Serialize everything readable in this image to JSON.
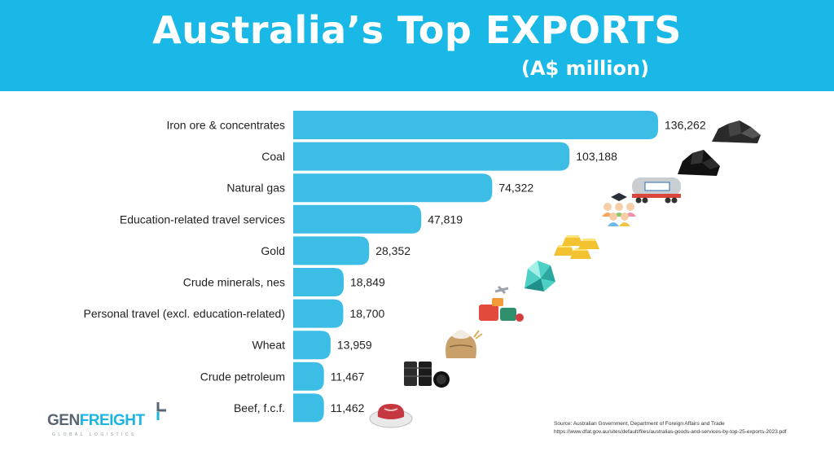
{
  "header": {
    "title": "Australia’s Top EXPORTS",
    "subtitle": "(A$ million)"
  },
  "chart_data": {
    "type": "bar",
    "orientation": "horizontal",
    "title": "Australia’s Top EXPORTS",
    "subtitle": "(A$ million)",
    "categories": [
      "Iron ore & concentrates",
      "Coal",
      "Natural gas",
      "Education-related travel services",
      "Gold",
      "Crude minerals, nes",
      "Personal travel (excl. education-related)",
      "Wheat",
      "Crude petroleum",
      "Beef, f.c.f."
    ],
    "values": [
      136262,
      103188,
      74322,
      47819,
      28352,
      18849,
      18700,
      13959,
      11467,
      11462
    ],
    "value_labels": [
      "136,262",
      "103,188",
      "74,322",
      "47,819",
      "28,352",
      "18,849",
      "18,700",
      "13,959",
      "11,467",
      "11,462"
    ],
    "icons": [
      "iron-ore-icon",
      "coal-icon",
      "gas-tanker-icon",
      "graduates-icon",
      "gold-bars-icon",
      "crystal-icon",
      "luggage-icon",
      "flour-sack-icon",
      "oil-barrels-icon",
      "steak-icon"
    ],
    "bar_color": "#3cbde6",
    "grid": false,
    "axis_visible": false
  },
  "logo": {
    "name_part1": "GEN",
    "name_part2": "FREIGHT",
    "tagline": "GLOBAL LOGISTICS"
  },
  "source": {
    "line1": "Source: Australian Government, Department of Foreign Affairs and Trade",
    "line2": "https://www.dfat.gov.au/sites/default/files/australias-goods-and-services-by-top-25-exports-2023.pdf"
  },
  "colors": {
    "banner": "#19b8e6",
    "bar": "#3cbde6",
    "accent": "#1cb4e3"
  }
}
